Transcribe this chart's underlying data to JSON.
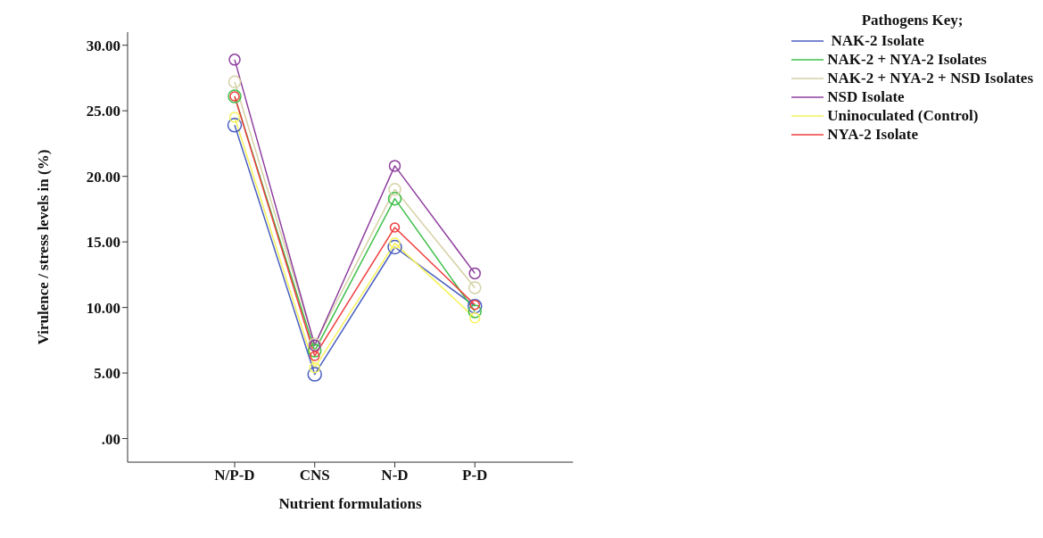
{
  "chart_data": {
    "type": "line",
    "xlabel": "Nutrient formulations",
    "ylabel": "Virulence / stress levels in (%)",
    "legend_title": "Pathogens Key;",
    "categories": [
      "N/P-D",
      "CNS",
      "N-D",
      "P-D"
    ],
    "series": [
      {
        "name": " NAK-2 Isolate",
        "color": "#4a5fc1",
        "values": [
          23.9,
          4.9,
          14.6,
          10.1
        ]
      },
      {
        "name": "NAK-2 + NYA-2 Isolates",
        "color": "#3fbf4a",
        "values": [
          26.1,
          6.7,
          18.3,
          9.7
        ]
      },
      {
        "name": "NAK-2 + NYA-2 + NSD Isolates",
        "color": "#d6d1a6",
        "values": [
          27.2,
          7.2,
          19.0,
          11.5
        ]
      },
      {
        "name": "NSD Isolate",
        "color": "#8e3f9e",
        "values": [
          28.9,
          7.1,
          20.8,
          12.6
        ]
      },
      {
        "name": "Uninoculated (Control)",
        "color": "#f6f25a",
        "values": [
          24.5,
          5.4,
          14.9,
          9.2
        ]
      },
      {
        "name": "NYA-2 Isolate",
        "color": "#f03c3c",
        "values": [
          26.1,
          6.3,
          16.1,
          10.2
        ]
      }
    ],
    "ylim": [
      -1.8,
      31
    ],
    "yticks": [
      {
        "value": 0,
        "label": ".00"
      },
      {
        "value": 5,
        "label": "5.00"
      },
      {
        "value": 10,
        "label": "10.00"
      },
      {
        "value": 15,
        "label": "15.00"
      },
      {
        "value": 20,
        "label": "20.00"
      },
      {
        "value": 25,
        "label": "25.00"
      },
      {
        "value": 30,
        "label": "30.00"
      }
    ],
    "grid": false,
    "legend": "top right",
    "marker": "circle",
    "line_style": "solid"
  }
}
